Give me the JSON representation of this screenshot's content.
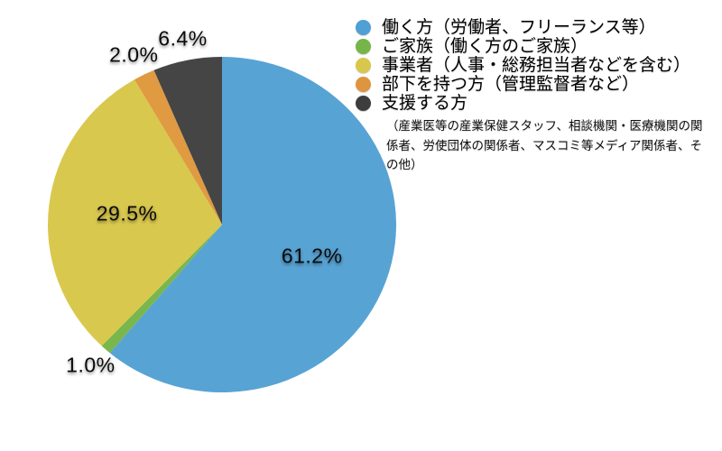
{
  "chart_data": {
    "type": "pie",
    "categories": [
      "働く方（労働者、フリーランス等）",
      "ご家族（働く方のご家族）",
      "事業者（人事・総務担当者などを含む）",
      "部下を持つ方（管理監督者など）",
      "支援する方"
    ],
    "values": [
      61.2,
      1.0,
      29.5,
      2.0,
      6.4
    ],
    "percent_labels": [
      "61.2%",
      "1.0%",
      "29.5%",
      "2.0%",
      "6.4%"
    ],
    "colors": [
      "#57a3d4",
      "#79b74c",
      "#d9c84e",
      "#e09a42",
      "#454545"
    ],
    "legend_dot_colors": [
      "#4ea0d5",
      "#76b549",
      "#d8c74c",
      "#df9440",
      "#3d3d3d"
    ],
    "start_angle_deg": 0,
    "direction": "clockwise",
    "legend_position": "top-right",
    "note": "（産業医等の産業保健スタッフ、相談機関・医療機関の関係者、労使団体の関係者、マスコミ等メディア関係者、その他）"
  }
}
